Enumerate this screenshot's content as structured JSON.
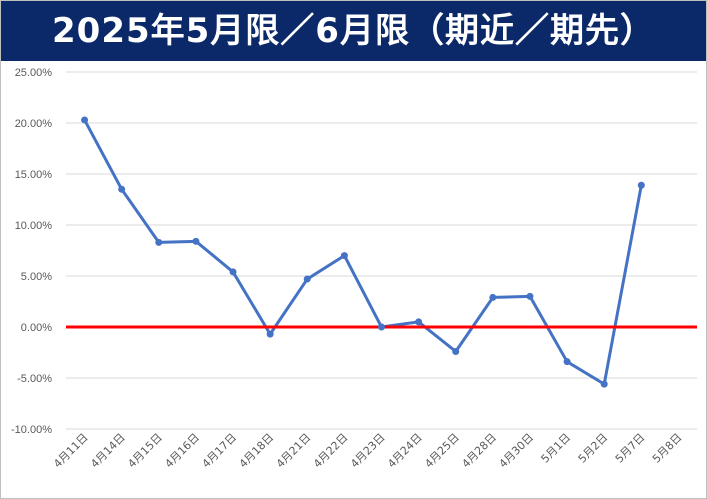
{
  "title": "2025年5月限／6月限（期近／期先）",
  "colors": {
    "title_bg": "#0b2869",
    "line": "#4472c4",
    "zero_line": "#ff0000",
    "grid": "#d9d9d9"
  },
  "chart_data": {
    "type": "line",
    "title": "2025年5月限／6月限（期近／期先）",
    "categories": [
      "4月11日",
      "4月14日",
      "4月15日",
      "4月16日",
      "4月17日",
      "4月18日",
      "4月21日",
      "4月22日",
      "4月23日",
      "4月24日",
      "4月25日",
      "4月28日",
      "4月30日",
      "5月1日",
      "5月2日",
      "5月7日",
      "5月8日"
    ],
    "values": [
      20.3,
      13.5,
      8.3,
      8.4,
      5.4,
      -0.7,
      4.7,
      7.0,
      0.0,
      0.5,
      -2.4,
      2.9,
      3.0,
      -3.4,
      -5.6,
      13.9,
      null
    ],
    "y_ticks": [
      "25.00%",
      "20.00%",
      "15.00%",
      "10.00%",
      "5.00%",
      "0.00%",
      "-5.00%",
      "-10.00%"
    ],
    "ylim": [
      -10,
      25
    ],
    "ytick_step": 5,
    "grid": true,
    "reference_line": 0
  }
}
